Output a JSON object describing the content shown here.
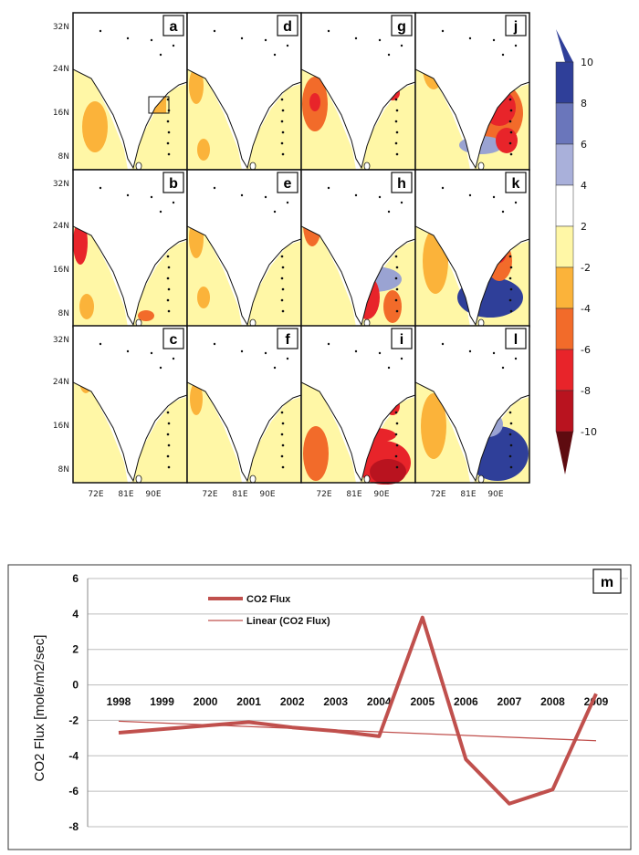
{
  "maps": {
    "panels": [
      "a",
      "b",
      "c",
      "d",
      "e",
      "f",
      "g",
      "h",
      "i",
      "j",
      "k",
      "l"
    ],
    "lat_labels": [
      "32N",
      "24N",
      "16N",
      "8N"
    ],
    "lon_labels": [
      "72E",
      "81E",
      "90E"
    ]
  },
  "colorbar": {
    "ticks": [
      "10",
      "8",
      "6",
      "4",
      "2",
      "-2",
      "-4",
      "-6",
      "-8",
      "-10"
    ],
    "colors": [
      "#2f3f99",
      "#5a68b0",
      "#9aa3d2",
      "#d6dbef",
      "#ffffff",
      "#fff7a6",
      "#fbb33a",
      "#f26b2a",
      "#e8242a",
      "#b9131f",
      "#5e0b10"
    ]
  },
  "chart_data": {
    "type": "line",
    "panel_label": "m",
    "ylabel": "CO2 Flux [mole/m2/sec]",
    "categories": [
      "1998",
      "1999",
      "2000",
      "2001",
      "2002",
      "2003",
      "2004",
      "2005",
      "2006",
      "2007",
      "2008",
      "2009"
    ],
    "ylim": [
      -8,
      6
    ],
    "yticks": [
      "6",
      "4",
      "2",
      "0",
      "-2",
      "-4",
      "-6",
      "-8"
    ],
    "grid": true,
    "legend_position": "top-left",
    "series": [
      {
        "name": "CO2 Flux",
        "color": "#c0504d",
        "values": [
          -2.7,
          -2.5,
          -2.3,
          -2.1,
          -2.4,
          -2.6,
          -2.9,
          3.8,
          -4.2,
          -6.7,
          -5.9,
          -0.5
        ]
      },
      {
        "name": "Linear (CO2 Flux)",
        "color": "#c0504d",
        "values": [
          -2.05,
          -2.15,
          -2.25,
          -2.35,
          -2.45,
          -2.55,
          -2.65,
          -2.75,
          -2.85,
          -2.95,
          -3.05,
          -3.15
        ]
      }
    ]
  }
}
